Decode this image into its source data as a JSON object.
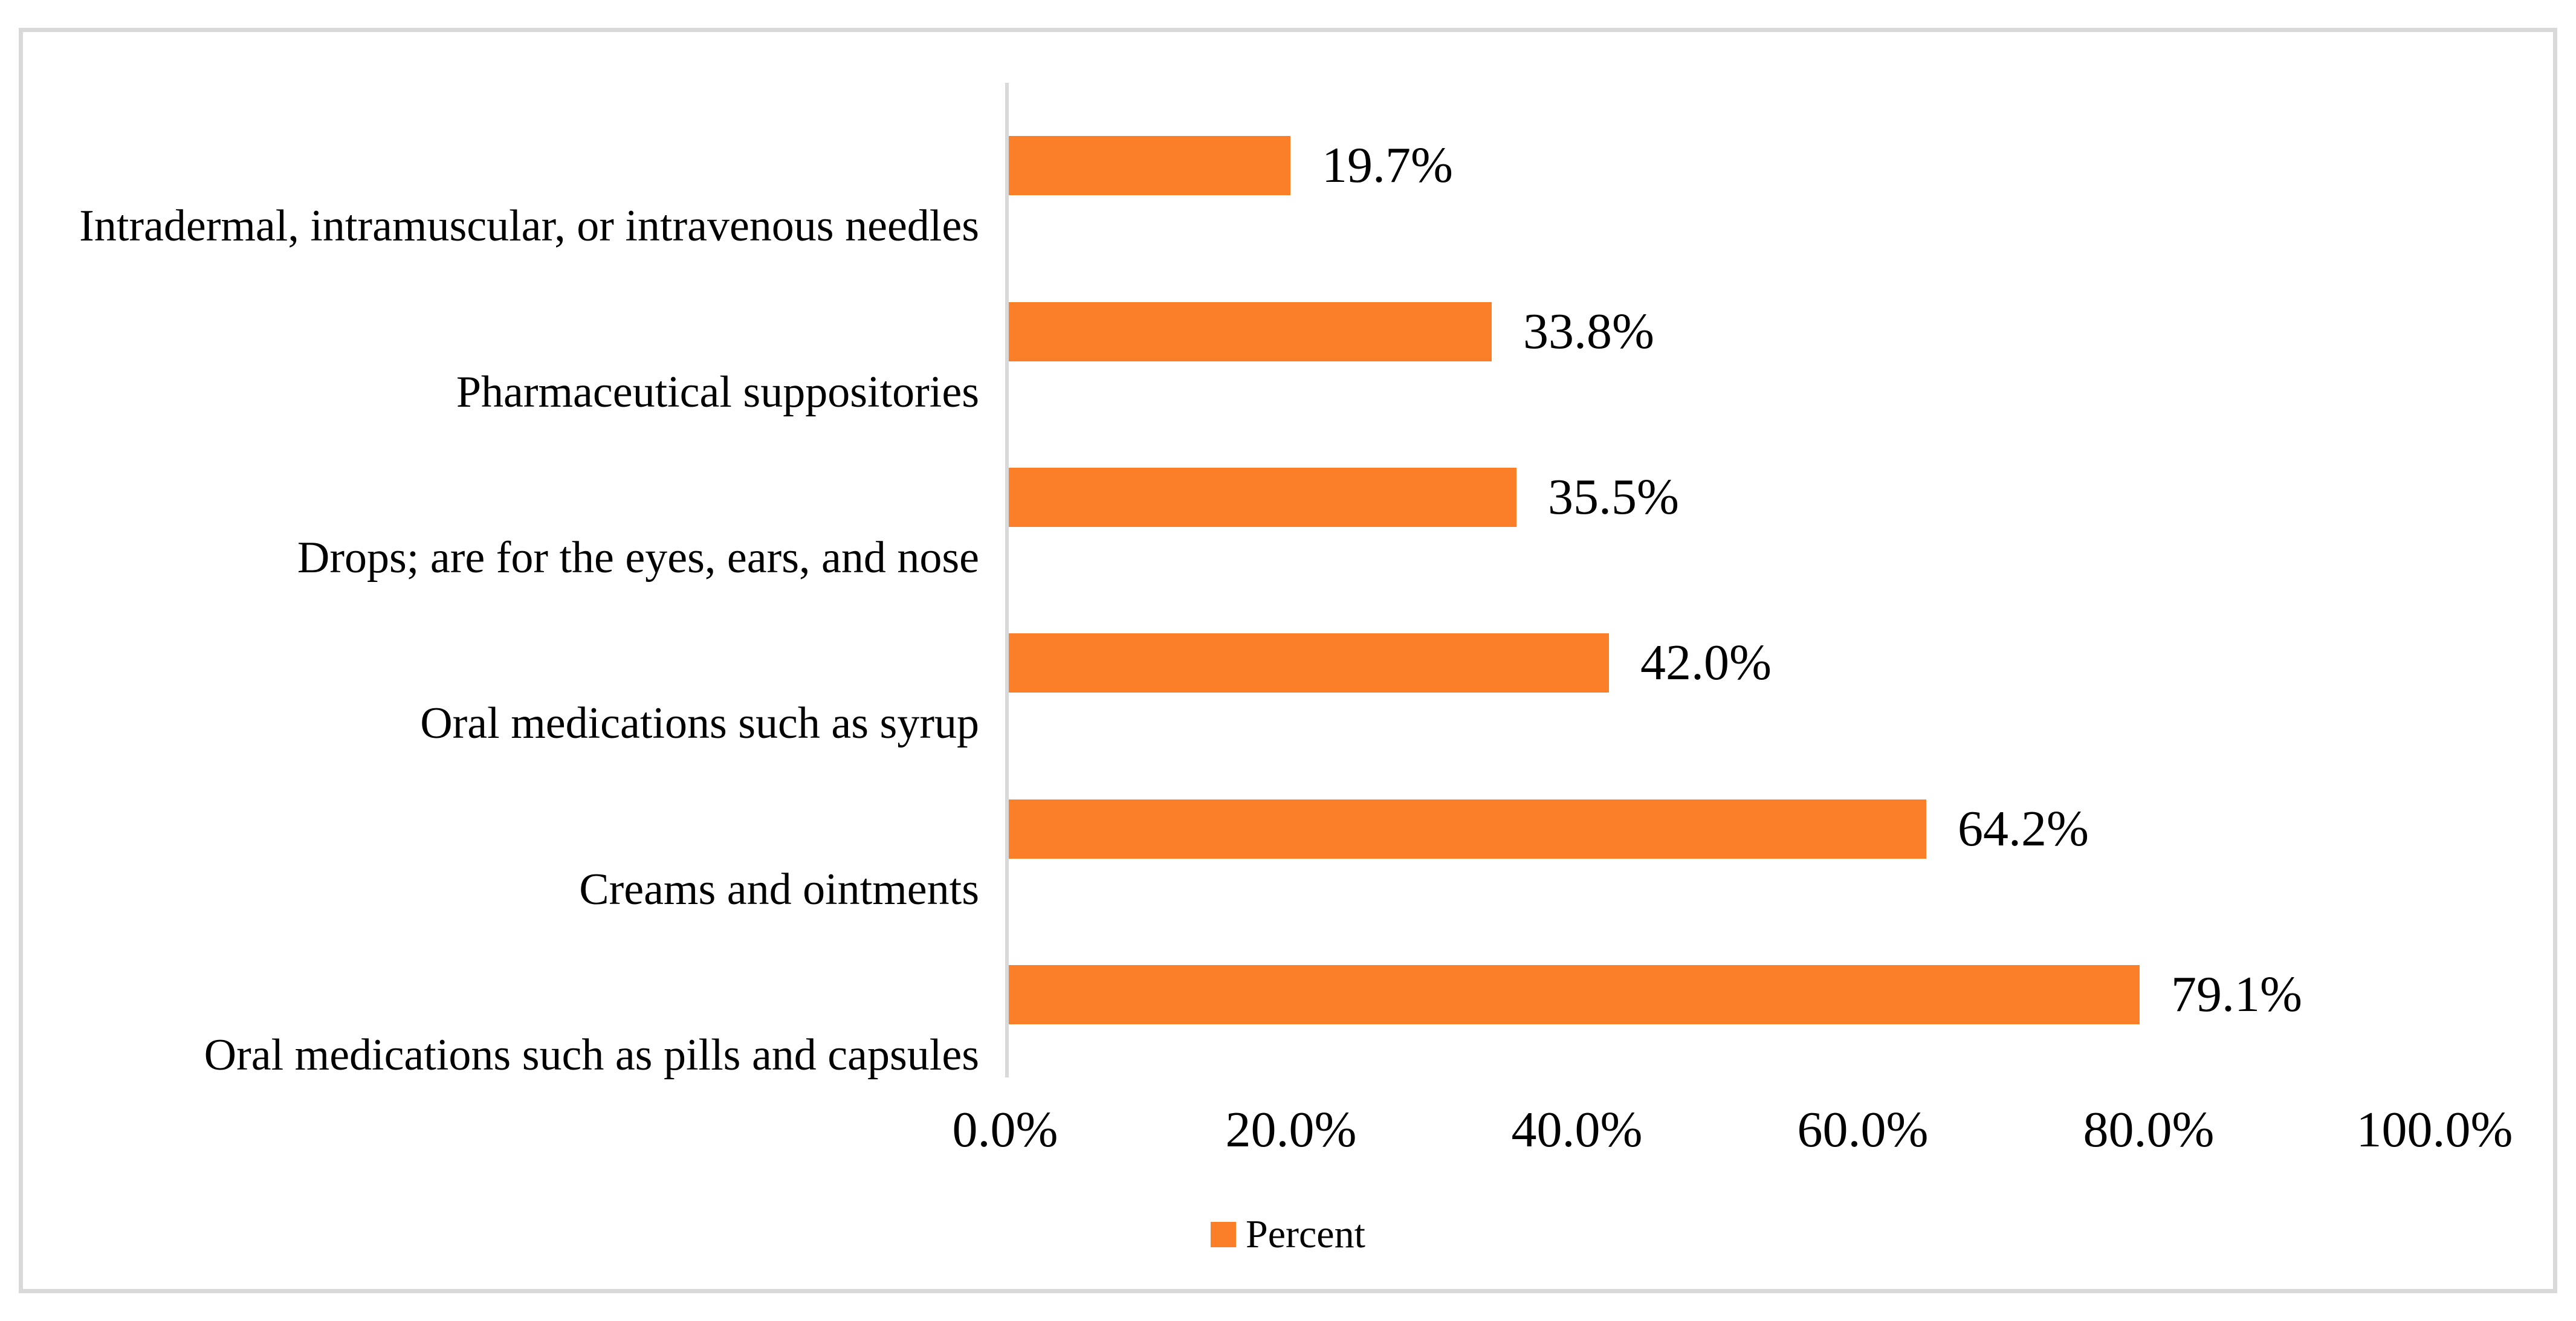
{
  "chart_data": {
    "type": "bar",
    "orientation": "horizontal",
    "title": "",
    "xlabel": "",
    "ylabel": "",
    "grid": false,
    "categories": [
      "Intradermal, intramuscular, or intravenous needles",
      "Pharmaceutical suppositories",
      "Drops; are for the eyes, ears, and nose",
      "Oral medications such as syrup",
      "Creams and ointments",
      "Oral medications such as pills and capsules"
    ],
    "series": [
      {
        "name": "Percent",
        "values": [
          19.7,
          33.8,
          35.5,
          42.0,
          64.2,
          79.1
        ],
        "value_labels": [
          "19.7%",
          "33.8%",
          "35.5%",
          "42.0%",
          "64.2%",
          "79.1%"
        ],
        "color": "#FB7E28"
      }
    ],
    "x_axis": {
      "min": 0,
      "max": 100,
      "tick_labels": [
        "0.0%",
        "20.0%",
        "40.0%",
        "60.0%",
        "80.0%",
        "100.0%"
      ]
    },
    "legend": {
      "position": "bottom",
      "label": "Percent",
      "swatch_color": "#FB7E28"
    },
    "colors": {
      "bar": "#FB7E28",
      "axis_line": "#D9D9D9",
      "frame_border": "#D9D9D9",
      "text": "#000000",
      "background": "#FFFFFF"
    }
  }
}
